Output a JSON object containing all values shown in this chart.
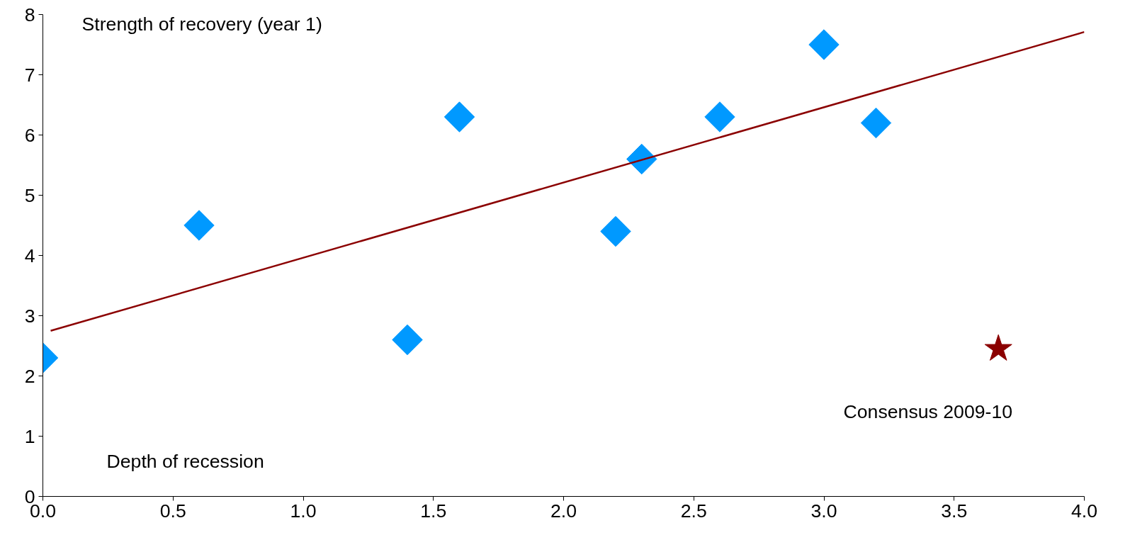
{
  "chart_data": {
    "type": "scatter",
    "xlabel": "Depth of recession",
    "ylabel": "Strength of recovery (year 1)",
    "xlim": [
      0,
      4
    ],
    "ylim": [
      0,
      8
    ],
    "xticks": [
      {
        "value": 0,
        "label": "0.0"
      },
      {
        "value": 0.5,
        "label": "0.5"
      },
      {
        "value": 1,
        "label": "1.0"
      },
      {
        "value": 1.5,
        "label": "1.5"
      },
      {
        "value": 2,
        "label": "2.0"
      },
      {
        "value": 2.5,
        "label": "2.5"
      },
      {
        "value": 3,
        "label": "3.0"
      },
      {
        "value": 3.5,
        "label": "3.5"
      },
      {
        "value": 4,
        "label": "4.0"
      }
    ],
    "yticks": [
      0,
      1,
      2,
      3,
      4,
      5,
      6,
      7,
      8
    ],
    "grid": false,
    "series": [
      {
        "type": "scatter",
        "marker": "diamond",
        "color": "#0099ff",
        "x": [
          0.0,
          0.6,
          1.4,
          1.6,
          2.2,
          2.3,
          2.6,
          3.0,
          3.2
        ],
        "values": [
          2.3,
          4.5,
          2.6,
          6.3,
          4.4,
          5.6,
          6.3,
          7.5,
          6.2
        ]
      },
      {
        "type": "scatter",
        "marker": "star",
        "color": "#8b0000",
        "x": [
          3.67
        ],
        "values": [
          2.45
        ]
      },
      {
        "type": "line",
        "line_style": "solid",
        "color": "#8b0000",
        "x": [
          0.03,
          4.0
        ],
        "values": [
          2.75,
          7.71
        ]
      }
    ],
    "annotations": [
      "Consensus 2009-10"
    ]
  }
}
